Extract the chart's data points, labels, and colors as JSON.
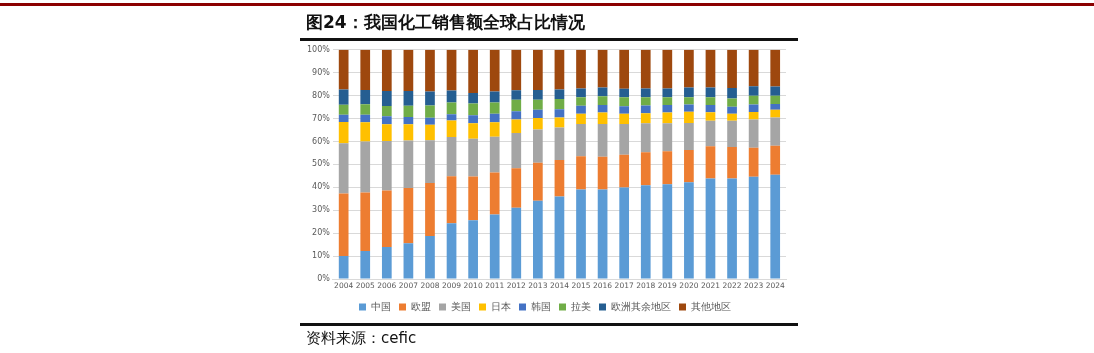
{
  "chart_data": {
    "type": "bar",
    "stacked": true,
    "title": "图24：我国化工销售额全球占比情况",
    "annotations": [
      "资料来源：cefic"
    ],
    "categories": [
      "2004",
      "2005",
      "2006",
      "2007",
      "2008",
      "2009",
      "2010",
      "2011",
      "2012",
      "2013",
      "2014",
      "2015",
      "2016",
      "2017",
      "2018",
      "2019",
      "2020",
      "2021",
      "2022",
      "2023",
      "2024"
    ],
    "series": [
      {
        "name": "中国",
        "color": "#5b9bd5",
        "values": [
          10,
          12.2,
          14,
          15.6,
          18.8,
          24.3,
          25.6,
          28.1,
          31.1,
          34.1,
          36,
          39.1,
          39.1,
          39.9,
          40.9,
          41.3,
          42.2,
          43.9,
          43.9,
          44.6,
          45.5
        ]
      },
      {
        "name": "欧盟",
        "color": "#ed7d31",
        "values": [
          27.3,
          25.5,
          24.6,
          24.1,
          23.1,
          20.5,
          19.1,
          18.4,
          17.2,
          16.6,
          15.9,
          14.5,
          14.2,
          14.3,
          14.4,
          14.4,
          14.1,
          14,
          13.7,
          12.7,
          12.6
        ]
      },
      {
        "name": "美国",
        "color": "#a5a5a5",
        "values": [
          21.9,
          22.3,
          21.6,
          20.7,
          18.6,
          17.2,
          16.5,
          15.6,
          15.4,
          14.5,
          14.2,
          14,
          14.3,
          13.4,
          12.6,
          12.2,
          11.8,
          11.1,
          11.4,
          12.3,
          12.4
        ]
      },
      {
        "name": "日本",
        "color": "#ffc000",
        "values": [
          9.3,
          8.4,
          7.3,
          7.1,
          6.8,
          7.1,
          6.7,
          6.3,
          5.9,
          5,
          4.4,
          4.5,
          5,
          4.5,
          4.4,
          4.7,
          4.9,
          3.7,
          3.1,
          3.3,
          3.3
        ]
      },
      {
        "name": "韩国",
        "color": "#4472c4",
        "values": [
          3.2,
          3.3,
          3.5,
          3.2,
          3,
          2.8,
          3.5,
          3.7,
          3.6,
          3.6,
          3.6,
          3.5,
          3.3,
          3.3,
          3.4,
          3.3,
          3.1,
          3.2,
          3,
          3.2,
          2.6
        ]
      },
      {
        "name": "拉美",
        "color": "#70ad47",
        "values": [
          4.3,
          4.5,
          4.5,
          4.9,
          5.4,
          5.1,
          5.2,
          4.9,
          5,
          4.4,
          4.4,
          3.7,
          3.8,
          3.9,
          3.6,
          3.4,
          3.2,
          3.4,
          3.7,
          3.9,
          3.6
        ]
      },
      {
        "name": "欧洲其余地区",
        "color": "#255e91",
        "values": [
          6.7,
          6.3,
          6.5,
          6.4,
          6.1,
          5.2,
          4.6,
          4.8,
          4.2,
          4.3,
          4.2,
          3.8,
          3.9,
          3.7,
          3.8,
          3.8,
          4.3,
          4.3,
          4.5,
          4.1,
          4
        ]
      },
      {
        "name": "其他地区",
        "color": "#9e480e",
        "values": [
          17.3,
          17.5,
          18,
          18,
          18.2,
          17.8,
          18.8,
          18.2,
          17.6,
          17.5,
          17.3,
          16.9,
          16.4,
          17,
          16.9,
          16.9,
          16.4,
          16.4,
          16.7,
          15.9,
          16
        ]
      }
    ],
    "ylim": [
      0,
      100
    ],
    "yticks": [
      {
        "value": 0,
        "label": "0%"
      },
      {
        "value": 10,
        "label": "10%"
      },
      {
        "value": 20,
        "label": "20%"
      },
      {
        "value": 30,
        "label": "30%"
      },
      {
        "value": 40,
        "label": "40%"
      },
      {
        "value": 50,
        "label": "50%"
      },
      {
        "value": 60,
        "label": "60%"
      },
      {
        "value": 70,
        "label": "70%"
      },
      {
        "value": 80,
        "label": "80%"
      },
      {
        "value": 90,
        "label": "90%"
      },
      {
        "value": 100,
        "label": "100%"
      }
    ],
    "grid": "y",
    "legend": "bottom"
  }
}
